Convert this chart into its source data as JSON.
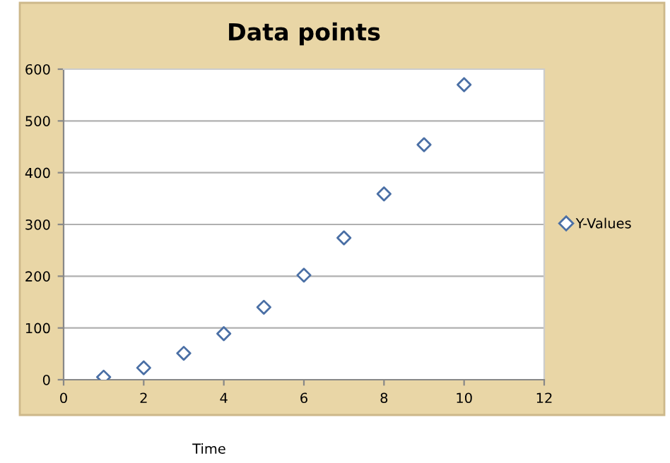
{
  "chart_data": {
    "type": "scatter",
    "title": "Data points",
    "xlabel": "Time",
    "x": [
      1,
      2,
      3,
      4,
      5,
      6,
      7,
      8,
      9,
      10
    ],
    "series": [
      {
        "name": "Y-Values",
        "color": "#4a6fa5",
        "values": [
          5,
          23,
          51,
          89,
          140,
          202,
          274,
          359,
          454,
          570
        ]
      }
    ],
    "xlim": [
      0,
      12
    ],
    "xticks": [
      0,
      2,
      4,
      6,
      8,
      10,
      12
    ],
    "ylim": [
      0,
      600
    ],
    "yticks": [
      0,
      100,
      200,
      300,
      400,
      500,
      600
    ],
    "grid": "y",
    "legend": "right",
    "marker": "diamond"
  }
}
